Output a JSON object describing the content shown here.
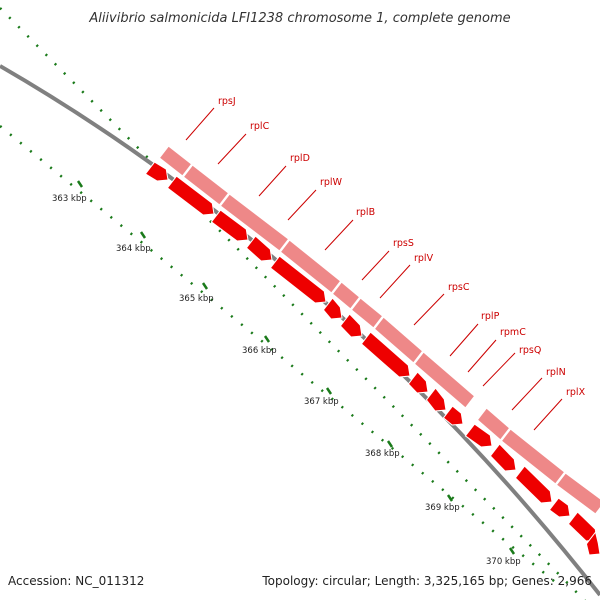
{
  "title": "Aliivibrio salmonicida LFI1238 chromosome 1, complete genome",
  "footer": {
    "accession": "Accession: NC_011312",
    "summary": "Topology: circular; Length: 3,325,165 bp; Genes: 2,966"
  },
  "colors": {
    "backbone": "#808080",
    "cds_outer": "#ee8888",
    "cds_inner": "#ee0000",
    "label": "#cc0000",
    "tick": "#1a7a1a"
  },
  "axis_labels": [
    "363 kbp",
    "364 kbp",
    "365 kbp",
    "366 kbp",
    "367 kbp",
    "368 kbp",
    "369 kbp",
    "370 kbp"
  ],
  "genes": [
    {
      "name": "rpsJ"
    },
    {
      "name": "rplC"
    },
    {
      "name": "rplD"
    },
    {
      "name": "rplW"
    },
    {
      "name": "rplB"
    },
    {
      "name": "rpsS"
    },
    {
      "name": "rplV"
    },
    {
      "name": "rpsC"
    },
    {
      "name": "rplP"
    },
    {
      "name": "rpmC"
    },
    {
      "name": "rpsQ"
    },
    {
      "name": "rplN"
    },
    {
      "name": "rplX"
    }
  ]
}
